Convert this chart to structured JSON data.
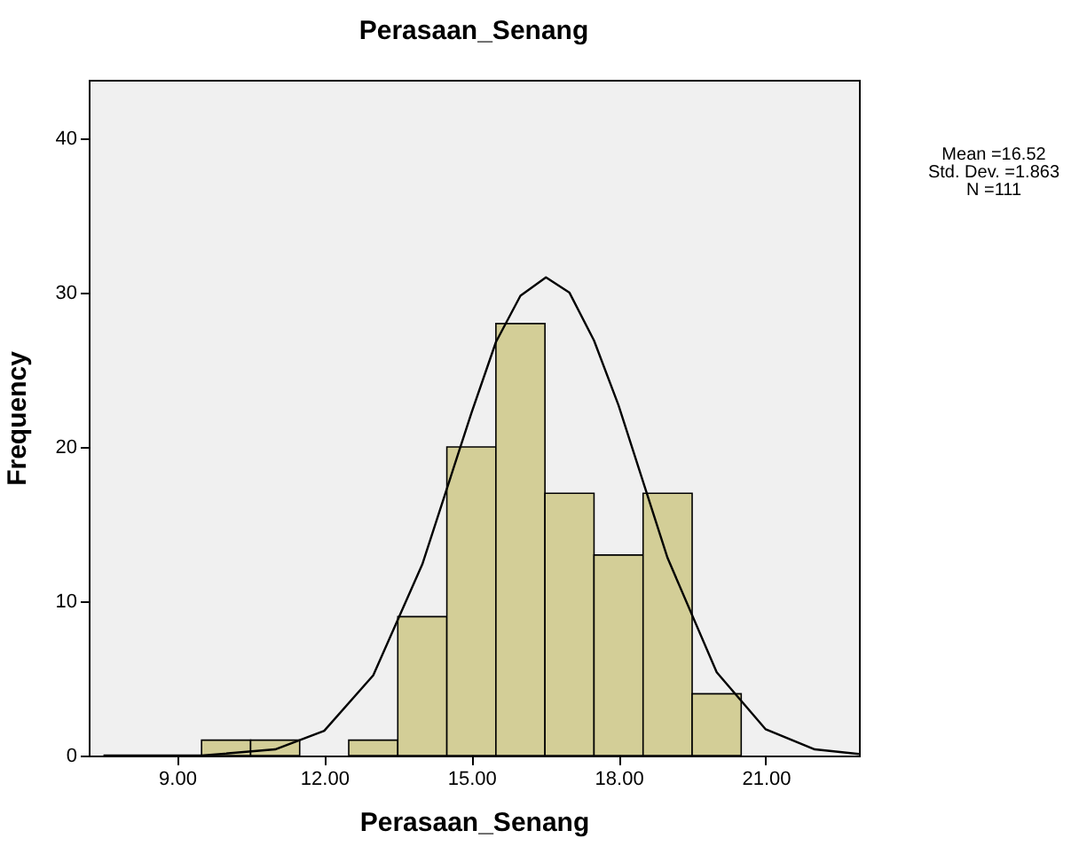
{
  "chart_data": {
    "type": "histogram",
    "title": "Perasaan_Senang",
    "xlabel": "Perasaan_Senang",
    "ylabel": "Frequency",
    "bins": [
      9.5,
      10.5,
      11.5,
      12.5,
      13.5,
      14.5,
      15.5,
      16.5,
      17.5,
      18.5,
      19.5,
      20.5
    ],
    "series": [
      {
        "color": "#d3ce97",
        "values": [
          1,
          1,
          0,
          1,
          9,
          20,
          28,
          17,
          13,
          17,
          4
        ]
      },
      {
        "type": "line",
        "color": "#000000",
        "x": [
          7.5,
          9.5,
          11,
          12,
          13,
          14,
          15,
          15.5,
          16,
          16.52,
          17,
          17.5,
          18,
          19,
          20,
          21,
          22,
          22.9
        ],
        "values": [
          0,
          0,
          0.4,
          1.6,
          5.2,
          12.4,
          22.2,
          26.8,
          29.8,
          31,
          30,
          26.9,
          22.7,
          12.8,
          5.4,
          1.7,
          0.4,
          0.1
        ]
      }
    ],
    "xlim": [
      7.2,
      22.9
    ],
    "xticks": [
      {
        "value": 9,
        "label": "9.00"
      },
      {
        "value": 12,
        "label": "12.00"
      },
      {
        "value": 15,
        "label": "15.00"
      },
      {
        "value": 18,
        "label": "18.00"
      },
      {
        "value": 21,
        "label": "21.00"
      }
    ],
    "ylim": [
      0,
      43.8
    ],
    "yticks": [
      0,
      10,
      20,
      30,
      40
    ],
    "annotations": [
      "Mean =16.52",
      "Std. Dev. =1.863",
      "N =111"
    ]
  }
}
